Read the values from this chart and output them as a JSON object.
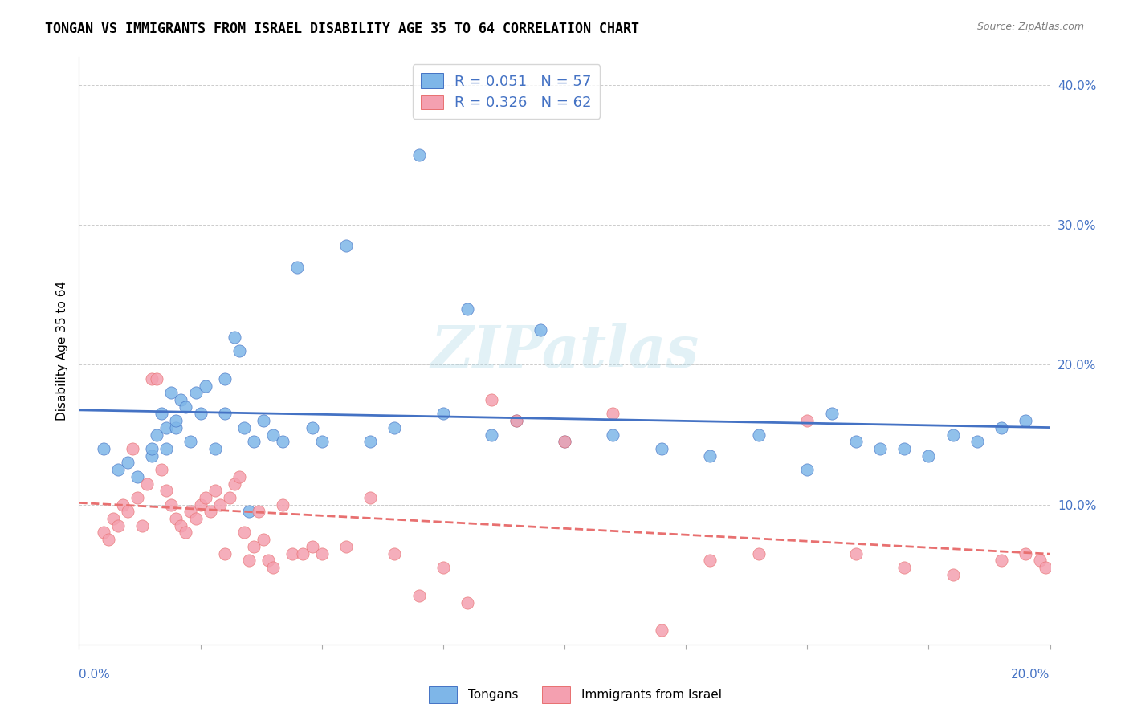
{
  "title": "TONGAN VS IMMIGRANTS FROM ISRAEL DISABILITY AGE 35 TO 64 CORRELATION CHART",
  "source": "Source: ZipAtlas.com",
  "ylabel": "Disability Age 35 to 64",
  "y_ticks": [
    0.0,
    0.1,
    0.2,
    0.3,
    0.4
  ],
  "y_tick_labels": [
    "",
    "10.0%",
    "20.0%",
    "30.0%",
    "40.0%"
  ],
  "x_range": [
    0.0,
    0.2
  ],
  "y_range": [
    0.0,
    0.42
  ],
  "legend_r1": "R = 0.051",
  "legend_n1": "N = 57",
  "legend_r2": "R = 0.326",
  "legend_n2": "N = 62",
  "blue_color": "#7EB6E8",
  "pink_color": "#F4A0B0",
  "line_blue": "#4472C4",
  "line_pink": "#E87070",
  "watermark": "ZIPatlas",
  "tongan_x": [
    0.005,
    0.008,
    0.01,
    0.012,
    0.015,
    0.015,
    0.016,
    0.017,
    0.018,
    0.018,
    0.019,
    0.02,
    0.02,
    0.021,
    0.022,
    0.023,
    0.024,
    0.025,
    0.026,
    0.028,
    0.03,
    0.03,
    0.032,
    0.033,
    0.034,
    0.035,
    0.036,
    0.038,
    0.04,
    0.042,
    0.045,
    0.048,
    0.05,
    0.055,
    0.06,
    0.065,
    0.07,
    0.075,
    0.08,
    0.085,
    0.09,
    0.095,
    0.1,
    0.11,
    0.12,
    0.13,
    0.14,
    0.15,
    0.155,
    0.16,
    0.165,
    0.17,
    0.175,
    0.18,
    0.185,
    0.19,
    0.195
  ],
  "tongan_y": [
    0.14,
    0.125,
    0.13,
    0.12,
    0.135,
    0.14,
    0.15,
    0.165,
    0.14,
    0.155,
    0.18,
    0.155,
    0.16,
    0.175,
    0.17,
    0.145,
    0.18,
    0.165,
    0.185,
    0.14,
    0.19,
    0.165,
    0.22,
    0.21,
    0.155,
    0.095,
    0.145,
    0.16,
    0.15,
    0.145,
    0.27,
    0.155,
    0.145,
    0.285,
    0.145,
    0.155,
    0.35,
    0.165,
    0.24,
    0.15,
    0.16,
    0.225,
    0.145,
    0.15,
    0.14,
    0.135,
    0.15,
    0.125,
    0.165,
    0.145,
    0.14,
    0.14,
    0.135,
    0.15,
    0.145,
    0.155,
    0.16
  ],
  "israel_x": [
    0.005,
    0.006,
    0.007,
    0.008,
    0.009,
    0.01,
    0.011,
    0.012,
    0.013,
    0.014,
    0.015,
    0.016,
    0.017,
    0.018,
    0.019,
    0.02,
    0.021,
    0.022,
    0.023,
    0.024,
    0.025,
    0.026,
    0.027,
    0.028,
    0.029,
    0.03,
    0.031,
    0.032,
    0.033,
    0.034,
    0.035,
    0.036,
    0.037,
    0.038,
    0.039,
    0.04,
    0.042,
    0.044,
    0.046,
    0.048,
    0.05,
    0.055,
    0.06,
    0.065,
    0.07,
    0.075,
    0.08,
    0.085,
    0.09,
    0.1,
    0.11,
    0.12,
    0.13,
    0.14,
    0.15,
    0.16,
    0.17,
    0.18,
    0.19,
    0.195,
    0.198,
    0.199
  ],
  "israel_y": [
    0.08,
    0.075,
    0.09,
    0.085,
    0.1,
    0.095,
    0.14,
    0.105,
    0.085,
    0.115,
    0.19,
    0.19,
    0.125,
    0.11,
    0.1,
    0.09,
    0.085,
    0.08,
    0.095,
    0.09,
    0.1,
    0.105,
    0.095,
    0.11,
    0.1,
    0.065,
    0.105,
    0.115,
    0.12,
    0.08,
    0.06,
    0.07,
    0.095,
    0.075,
    0.06,
    0.055,
    0.1,
    0.065,
    0.065,
    0.07,
    0.065,
    0.07,
    0.105,
    0.065,
    0.035,
    0.055,
    0.03,
    0.175,
    0.16,
    0.145,
    0.165,
    0.01,
    0.06,
    0.065,
    0.16,
    0.065,
    0.055,
    0.05,
    0.06,
    0.065,
    0.06,
    0.055
  ]
}
